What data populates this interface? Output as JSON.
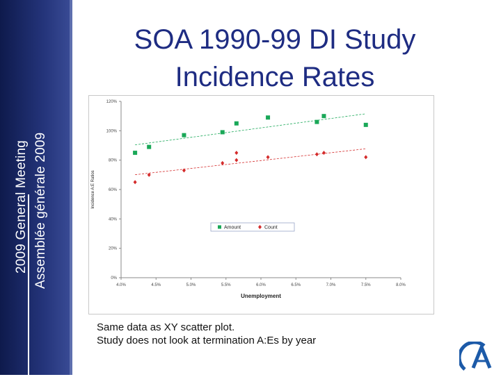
{
  "sidebar": {
    "line1": "2009 General Meeting",
    "line2": "Assemblée générale 2009"
  },
  "slide": {
    "title_line1": "SOA 1990-99 DI Study",
    "title_line2": "Incidence Rates",
    "caption_line1": "Same data as XY scatter plot.",
    "caption_line2": "Study does not look at termination A:Es by year"
  },
  "logo": {
    "icon": "soa-logo-icon",
    "color": "#1c5aa8"
  },
  "chart_data": {
    "type": "scatter",
    "xlabel": "Unemployment",
    "ylabel": "Incidence A:E Ratios",
    "x_ticks": [
      "4.0%",
      "4.5%",
      "5.0%",
      "5.5%",
      "6.0%",
      "6.5%",
      "7.0%",
      "7.5%",
      "8.0%"
    ],
    "y_ticks": [
      "0%",
      "20%",
      "40%",
      "60%",
      "80%",
      "100%",
      "120%"
    ],
    "xlim": [
      4.0,
      8.0
    ],
    "ylim": [
      0,
      120
    ],
    "grid": false,
    "legend_position": "center-right",
    "trendlines": true,
    "series": [
      {
        "name": "Amount",
        "marker": "square",
        "color": "#1aa858",
        "points": [
          [
            4.2,
            85
          ],
          [
            4.4,
            89
          ],
          [
            4.9,
            97
          ],
          [
            5.45,
            99
          ],
          [
            5.65,
            105
          ],
          [
            6.1,
            109
          ],
          [
            6.8,
            106
          ],
          [
            6.9,
            110
          ],
          [
            7.5,
            104
          ]
        ]
      },
      {
        "name": "Count",
        "marker": "diamond",
        "color": "#d42a2a",
        "points": [
          [
            4.2,
            65
          ],
          [
            4.4,
            70
          ],
          [
            4.9,
            73
          ],
          [
            5.45,
            78
          ],
          [
            5.65,
            80
          ],
          [
            5.65,
            85
          ],
          [
            6.1,
            82
          ],
          [
            6.8,
            84
          ],
          [
            6.9,
            85
          ],
          [
            7.5,
            82
          ]
        ]
      }
    ]
  }
}
